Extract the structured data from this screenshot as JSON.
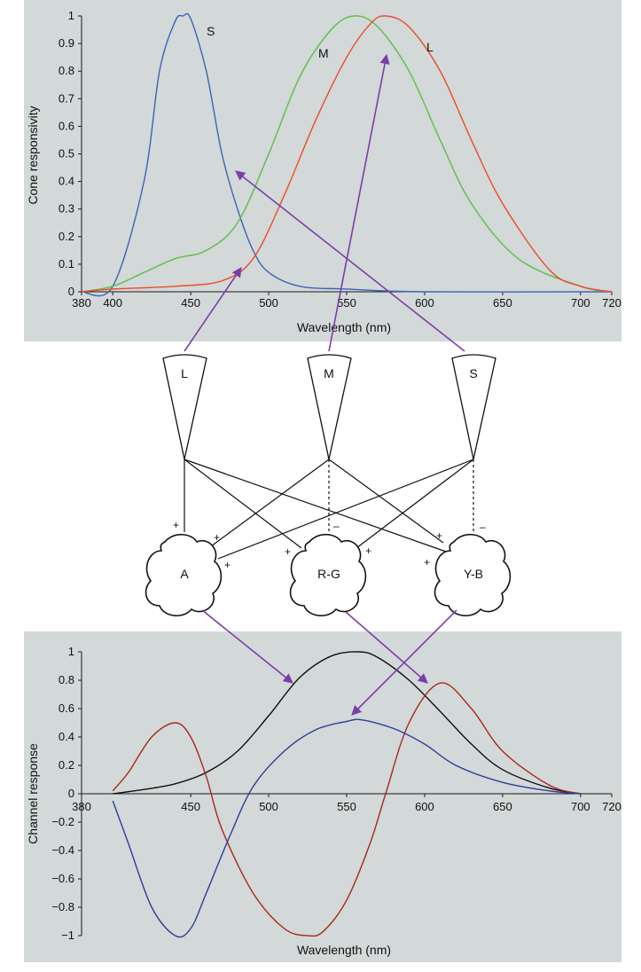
{
  "top_chart": {
    "ylabel": "Cone responsivity",
    "xlabel": "Wavelength (nm)",
    "x_ticks": [
      "380",
      "400",
      "450",
      "500",
      "550",
      "600",
      "650",
      "700",
      "720"
    ],
    "y_ticks": [
      "0",
      "0.1",
      "0.2",
      "0.3",
      "0.4",
      "0.5",
      "0.6",
      "0.7",
      "0.8",
      "0.9",
      "1"
    ],
    "curve_labels": {
      "S": "S",
      "M": "M",
      "L": "L"
    },
    "colors": {
      "S": "#3b63b8",
      "M": "#5cbf4a",
      "L": "#ee4a2a"
    }
  },
  "bottom_chart": {
    "ylabel": "Channel response",
    "xlabel": "Wavelength (nm)",
    "x_ticks": [
      "380",
      "450",
      "500",
      "550",
      "600",
      "650",
      "700",
      "720"
    ],
    "y_ticks": [
      "1",
      "0.8",
      "0.6",
      "0.4",
      "0.2",
      "0",
      "−0.2",
      "−0.4",
      "−0.6",
      "−0.8",
      "−1"
    ],
    "colors": {
      "A": "#111111",
      "RG": "#a8281e",
      "YB": "#2a3f9a"
    }
  },
  "diagram": {
    "cones": {
      "L": "L",
      "M": "M",
      "S": "S"
    },
    "channels": {
      "A": "A",
      "RG": "R-G",
      "YB": "Y-B"
    },
    "signs": {
      "plus": "+",
      "minus": "–"
    },
    "arrow_color": "#7a3fa6"
  },
  "chart_data": [
    {
      "type": "line",
      "xlabel": "Wavelength (nm)",
      "ylabel": "Cone responsivity",
      "xlim": [
        380,
        720
      ],
      "ylim": [
        0,
        1
      ],
      "series": [
        {
          "name": "S",
          "x": [
            380,
            400,
            420,
            430,
            440,
            445,
            450,
            460,
            470,
            480,
            490,
            500,
            520,
            550,
            600,
            720
          ],
          "y": [
            0,
            0.02,
            0.4,
            0.8,
            0.98,
            1.0,
            0.99,
            0.8,
            0.5,
            0.3,
            0.15,
            0.07,
            0.02,
            0.01,
            0,
            0
          ]
        },
        {
          "name": "M",
          "x": [
            380,
            400,
            420,
            440,
            460,
            480,
            500,
            520,
            540,
            555,
            570,
            590,
            610,
            630,
            660,
            700,
            720
          ],
          "y": [
            0,
            0.02,
            0.07,
            0.12,
            0.15,
            0.25,
            0.5,
            0.78,
            0.95,
            1.0,
            0.96,
            0.8,
            0.55,
            0.32,
            0.12,
            0.02,
            0
          ]
        },
        {
          "name": "L",
          "x": [
            380,
            400,
            440,
            470,
            490,
            510,
            530,
            550,
            565,
            575,
            590,
            610,
            630,
            650,
            680,
            700,
            720
          ],
          "y": [
            0,
            0.01,
            0.02,
            0.04,
            0.12,
            0.35,
            0.62,
            0.85,
            0.97,
            1.0,
            0.96,
            0.8,
            0.55,
            0.32,
            0.08,
            0.02,
            0
          ]
        }
      ]
    },
    {
      "type": "line",
      "xlabel": "Wavelength (nm)",
      "ylabel": "Channel response",
      "xlim": [
        380,
        720
      ],
      "ylim": [
        -1,
        1
      ],
      "series": [
        {
          "x": [
            400,
            420,
            440,
            460,
            480,
            500,
            520,
            540,
            558,
            570,
            590,
            610,
            630,
            650,
            680,
            700
          ],
          "y": [
            0,
            0.03,
            0.07,
            0.15,
            0.3,
            0.55,
            0.82,
            0.97,
            1.0,
            0.96,
            0.8,
            0.58,
            0.35,
            0.17,
            0.04,
            0
          ]
        },
        {
          "x": [
            400,
            410,
            425,
            440,
            450,
            460,
            470,
            490,
            510,
            525,
            535,
            550,
            565,
            575,
            590,
            610,
            630,
            650,
            680,
            700
          ],
          "y": [
            0.02,
            0.15,
            0.4,
            0.5,
            0.4,
            0.12,
            -0.25,
            -0.7,
            -0.95,
            -1.0,
            -0.97,
            -0.75,
            -0.35,
            0,
            0.5,
            0.78,
            0.6,
            0.3,
            0.06,
            0
          ]
        },
        {
          "x": [
            400,
            410,
            425,
            440,
            450,
            460,
            475,
            490,
            510,
            530,
            550,
            560,
            580,
            600,
            620,
            650,
            680,
            700
          ],
          "y": [
            -0.05,
            -0.35,
            -0.8,
            -1.0,
            -0.95,
            -0.7,
            -0.3,
            0.05,
            0.3,
            0.45,
            0.51,
            0.52,
            0.46,
            0.35,
            0.2,
            0.08,
            0.02,
            0
          ]
        }
      ]
    }
  ]
}
